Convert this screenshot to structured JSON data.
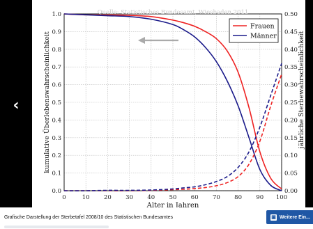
{
  "viewer": {
    "prev_arrow": "‹",
    "caption": "Grafische Darstellung der Sterbetafel 2008/10 des Statistischen Bundesamtes",
    "more_button": "Weitere Ein..."
  },
  "chart_data": {
    "type": "line",
    "title": "Quelle: Statistisches Bundesamt, Wiesbaden 2011",
    "xlabel": "Alter in Jahren",
    "ylabel_left": "kumulative Überlebenswahrscheinlichkeit",
    "ylabel_right": "jährliche Sterbewahrscheinlichkeit",
    "xlim": [
      0,
      100
    ],
    "ylim_left": [
      0.0,
      1.0
    ],
    "ylim_right": [
      0.0,
      0.5
    ],
    "x_ticks": [
      "0",
      "10",
      "20",
      "30",
      "40",
      "50",
      "60",
      "70",
      "80",
      "90",
      "100"
    ],
    "y_ticks_left": [
      "0.0",
      "0.1",
      "0.2",
      "0.3",
      "0.4",
      "0.5",
      "0.6",
      "0.7",
      "0.8",
      "0.9",
      "1.0"
    ],
    "y_ticks_right": [
      "0.00",
      "0.05",
      "0.10",
      "0.15",
      "0.20",
      "0.25",
      "0.30",
      "0.35",
      "0.40",
      "0.45",
      "0.50"
    ],
    "grid": true,
    "legend": "top-right",
    "x": [
      0,
      10,
      20,
      30,
      40,
      50,
      55,
      60,
      65,
      70,
      75,
      80,
      85,
      90,
      95,
      100
    ],
    "series": [
      {
        "name": "Frauen",
        "color": "#ee2222",
        "style": "solid",
        "axis": "left",
        "values": [
          1.0,
          0.995,
          0.994,
          0.992,
          0.985,
          0.965,
          0.95,
          0.93,
          0.9,
          0.86,
          0.79,
          0.67,
          0.47,
          0.22,
          0.07,
          0.01
        ]
      },
      {
        "name": "Männer",
        "color": "#1a1a8a",
        "style": "solid",
        "axis": "left",
        "values": [
          1.0,
          0.995,
          0.99,
          0.985,
          0.97,
          0.94,
          0.91,
          0.87,
          0.81,
          0.73,
          0.62,
          0.48,
          0.3,
          0.12,
          0.03,
          0.0
        ]
      },
      {
        "name": "",
        "color": "#ee2222",
        "style": "dashed",
        "axis": "right",
        "values": [
          0.0,
          0.0,
          0.0,
          0.0,
          0.001,
          0.003,
          0.004,
          0.006,
          0.009,
          0.014,
          0.023,
          0.04,
          0.075,
          0.14,
          0.24,
          0.33
        ]
      },
      {
        "name": "",
        "color": "#1a1a8a",
        "style": "dashed",
        "axis": "right",
        "values": [
          0.0,
          0.0,
          0.001,
          0.001,
          0.002,
          0.005,
          0.008,
          0.011,
          0.017,
          0.026,
          0.04,
          0.066,
          0.11,
          0.18,
          0.27,
          0.36
        ]
      }
    ]
  }
}
